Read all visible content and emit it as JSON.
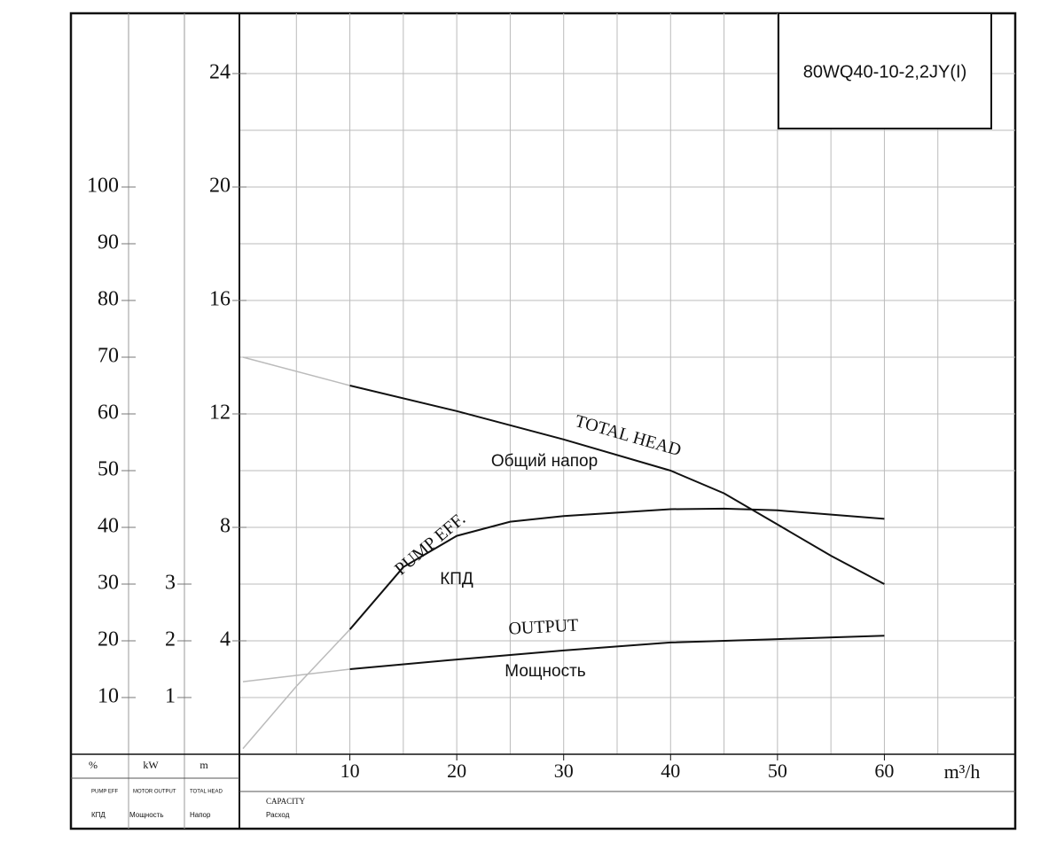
{
  "model": "80WQ40-10-2,2JY(I)",
  "chart_data": {
    "type": "line",
    "x_unit": "m³/h",
    "x_label_en": "CAPACITY",
    "x_label_ru": "Расход",
    "xlim": [
      0,
      70
    ],
    "xticks": [
      10,
      20,
      30,
      40,
      50,
      60
    ],
    "xgrid": [
      5,
      10,
      15,
      20,
      25,
      30,
      35,
      40,
      45,
      50,
      55,
      60,
      65
    ],
    "ylim": [
      0,
      26
    ],
    "yticks": [
      4,
      8,
      12,
      16,
      20,
      24
    ],
    "ygrid": [
      2,
      4,
      6,
      8,
      10,
      12,
      14,
      16,
      18,
      20,
      22,
      24
    ],
    "y_unit": "m",
    "y_label_en": "TOTAL HEAD",
    "y_label_ru": "Напор",
    "y2lim": [
      0,
      130
    ],
    "y2ticks": [
      10,
      20,
      30,
      40,
      50,
      60,
      70,
      80,
      90,
      100
    ],
    "y2_unit": "%",
    "y2_label_en": "PUMP EFF",
    "y2_label_ru": "КПД",
    "y3lim": [
      0,
      13
    ],
    "y3ticks": [
      1,
      2,
      3
    ],
    "y3_unit": "kW",
    "y3_label_en": "MOTOR OUTPUT",
    "y3_label_ru": "Мощность",
    "faint_below": 10,
    "faint_color": "#bbbbbb",
    "series": [
      {
        "name": "TOTAL HEAD",
        "name_ru": "Общий напор",
        "color": "#111111",
        "axis": "y",
        "x": [
          0,
          10,
          20,
          30,
          40,
          45,
          50,
          55,
          60
        ],
        "values": [
          14,
          13,
          12.1,
          11.1,
          10,
          9.2,
          8.1,
          7,
          6
        ]
      },
      {
        "name": "PUMP EFF.",
        "name_ru": "КПД",
        "color": "#111111",
        "axis": "y2",
        "x": [
          0,
          5,
          10,
          15,
          20,
          25,
          30,
          40,
          45,
          50,
          60
        ],
        "values": [
          1,
          12,
          22,
          33,
          38.5,
          41,
          42,
          43.2,
          43.3,
          43,
          41.5
        ]
      },
      {
        "name": "OUTPUT",
        "name_ru": "Мощность",
        "color": "#111111",
        "axis": "y3",
        "x": [
          0,
          10,
          20,
          30,
          40,
          50,
          60
        ],
        "values": [
          1.28,
          1.5,
          1.67,
          1.83,
          1.97,
          2.03,
          2.09
        ]
      }
    ]
  }
}
